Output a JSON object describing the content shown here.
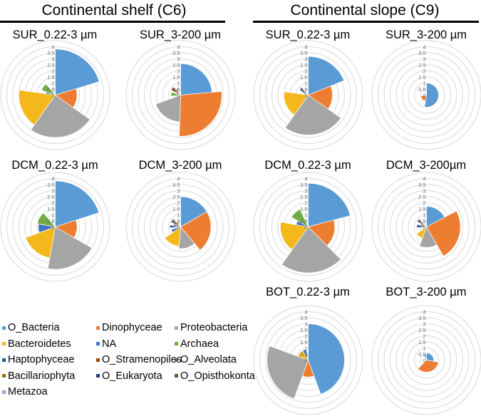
{
  "headers": {
    "shelf": "Continental shelf (C6)",
    "slope": "Continental slope (C9)"
  },
  "chart_data": {
    "type": "polar-area",
    "radial_axis": {
      "min": 0,
      "max": 4,
      "step": 0.5,
      "ticks": [
        "0",
        "0.5",
        "1",
        "1.5",
        "2",
        "2.5",
        "3",
        "3.5",
        "4"
      ]
    },
    "categories": [
      "O_Bacteria",
      "Dinophyceae",
      "Proteobacteria",
      "Bacteroidetes",
      "NA",
      "Archaea",
      "Haptophyceae",
      "O_Stramenopiles",
      "O_Alveolata",
      "Bacillariophyta",
      "O_Eukaryota",
      "O_Opisthokonta",
      "Metazoa"
    ],
    "colors": [
      "#5B9BD5",
      "#ED7D31",
      "#A5A5A5",
      "#F4B81C",
      "#4472C4",
      "#70AD47",
      "#255E91",
      "#9E480E",
      "#636363",
      "#997300",
      "#264478",
      "#43682B",
      "#8FAADC"
    ],
    "legend_placement": "bottom-left",
    "note": "each segment: value = radius (axis units), angle = angular share in degrees",
    "charts": [
      {
        "title": "SUR_0.22-3 µm",
        "site": "shelf",
        "values": [
          3.8,
          1.8,
          3.5,
          3.0,
          0.8,
          1.2,
          0.5,
          0.3,
          0.3,
          0.2,
          0.4,
          0.2,
          0.2
        ],
        "angles": [
          73,
          52,
          90,
          63,
          12,
          30,
          10,
          8,
          6,
          4,
          6,
          3,
          3
        ]
      },
      {
        "title": "SUR_3-200 µm",
        "site": "shelf",
        "values": [
          2.6,
          3.4,
          2.2,
          0.2,
          0.3,
          0.8,
          0.3,
          0.9,
          0.6,
          0.4,
          0.3,
          0.2,
          0.2
        ],
        "angles": [
          85,
          97,
          68,
          3,
          10,
          25,
          10,
          20,
          15,
          10,
          7,
          5,
          5
        ]
      },
      {
        "title": "SUR_0.22-3 µm",
        "site": "slope",
        "values": [
          3.2,
          2.0,
          3.3,
          2.0,
          0.3,
          0.5,
          0.8,
          0.4,
          0.3,
          0.2,
          0.3,
          0.2,
          0.2
        ],
        "angles": [
          68,
          57,
          90,
          63,
          10,
          12,
          18,
          10,
          8,
          6,
          8,
          5,
          5
        ]
      },
      {
        "title": "SUR_3-200 µm",
        "site": "slope",
        "values": [
          1.0,
          0.5,
          0.1,
          0.1,
          0.1,
          0.1,
          0.1,
          0.1,
          0.1,
          0.1,
          0.1,
          0.1,
          0.1
        ],
        "angles": [
          190,
          70,
          10,
          10,
          10,
          10,
          10,
          10,
          10,
          8,
          8,
          7,
          7
        ]
      },
      {
        "title": "DCM_0.22-3 µm",
        "site": "shelf",
        "values": [
          3.8,
          1.8,
          3.5,
          2.6,
          1.4,
          1.5,
          0.5,
          0.3,
          0.3,
          0.2,
          0.4,
          0.2,
          0.2
        ],
        "angles": [
          72,
          48,
          70,
          60,
          30,
          40,
          10,
          8,
          6,
          4,
          6,
          3,
          3
        ]
      },
      {
        "title": "DCM_3-200 µm",
        "site": "shelf",
        "values": [
          2.5,
          2.5,
          1.8,
          1.6,
          0.8,
          0.3,
          0.9,
          0.6,
          0.9,
          0.5,
          0.4,
          0.5,
          0.3
        ],
        "angles": [
          60,
          80,
          45,
          50,
          20,
          10,
          15,
          15,
          20,
          15,
          10,
          10,
          10
        ]
      },
      {
        "title": "DCM_0.22-3 µm",
        "site": "slope",
        "values": [
          3.6,
          2.2,
          3.8,
          2.3,
          1.0,
          1.6,
          0.5,
          0.3,
          0.3,
          0.2,
          0.4,
          0.2,
          0.2
        ],
        "angles": [
          75,
          60,
          80,
          65,
          20,
          35,
          5,
          4,
          4,
          3,
          4,
          3,
          2
        ]
      },
      {
        "title": "DCM_3-200µm",
        "site": "slope",
        "values": [
          1.7,
          2.8,
          1.7,
          1.0,
          0.3,
          0.3,
          0.8,
          0.5,
          0.9,
          0.3,
          0.4,
          0.3,
          0.3
        ],
        "angles": [
          62,
          88,
          50,
          35,
          15,
          15,
          20,
          15,
          15,
          10,
          10,
          10,
          15
        ]
      },
      {
        "title": "BOT_0.22-3 µm",
        "site": "slope",
        "values": [
          3.0,
          1.4,
          3.4,
          0.9,
          0.9,
          0.2,
          0.3,
          0.2,
          0.2,
          0.1,
          0.2,
          0.1,
          0.1
        ],
        "angles": [
          160,
          40,
          90,
          40,
          20,
          2,
          2,
          2,
          1,
          1,
          1,
          0.5,
          0.5
        ]
      },
      {
        "title": "BOT_3-200 µm",
        "site": "slope",
        "values": [
          0.6,
          1.0,
          0.2,
          0.1,
          0.3,
          0.1,
          0.3,
          0.1,
          0.1,
          0.1,
          0.2,
          0.1,
          0.5
        ],
        "angles": [
          100,
          125,
          10,
          10,
          10,
          10,
          10,
          10,
          10,
          10,
          15,
          10,
          30
        ]
      }
    ]
  }
}
